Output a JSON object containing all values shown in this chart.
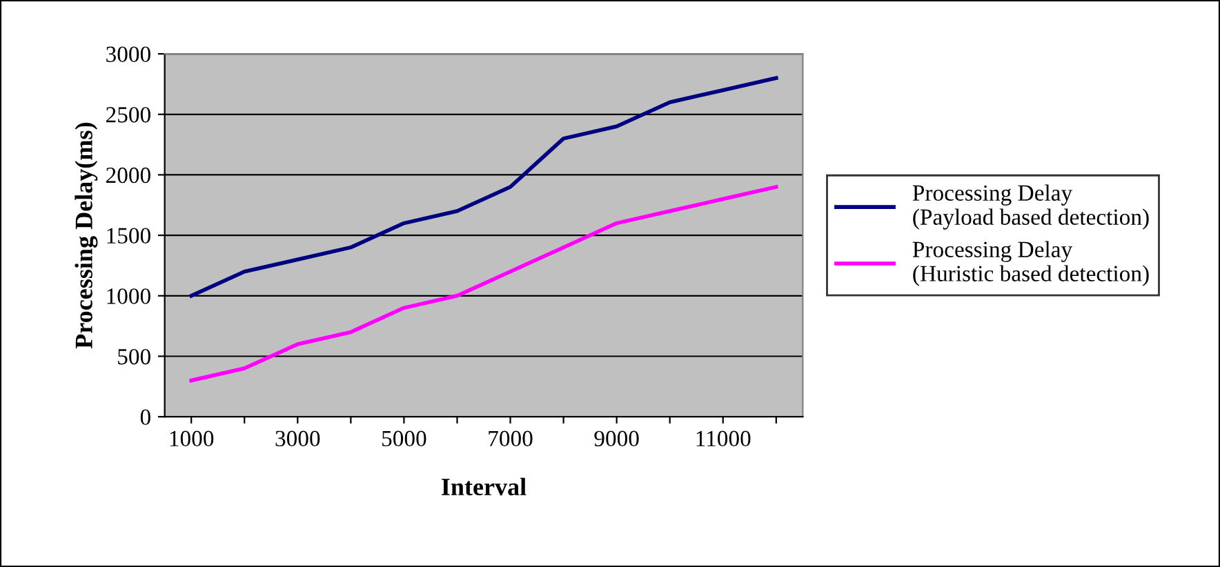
{
  "chart_data": {
    "type": "line",
    "xlabel": "Interval",
    "ylabel": "Processing Delay(ms)",
    "categories": [
      "1000",
      null,
      "3000",
      null,
      "5000",
      null,
      "7000",
      null,
      "9000",
      null,
      "11000",
      null
    ],
    "series": [
      {
        "name": "Processing Delay\n(Payload based detection)",
        "color": "#000080",
        "values": [
          1000,
          1200,
          1300,
          1400,
          1600,
          1700,
          1900,
          2300,
          2400,
          2600,
          2700,
          2800
        ]
      },
      {
        "name": "Processing Delay\n(Huristic based detection)",
        "color": "#ff00ff",
        "values": [
          300,
          400,
          600,
          700,
          900,
          1000,
          1200,
          1400,
          1600,
          1700,
          1800,
          1900
        ]
      }
    ],
    "ylim": [
      0,
      3000
    ],
    "yticks": [
      0,
      500,
      1000,
      1500,
      2000,
      2500,
      3000
    ],
    "grid": "y",
    "legend": "right",
    "marker": "none",
    "line_style": "solid"
  }
}
